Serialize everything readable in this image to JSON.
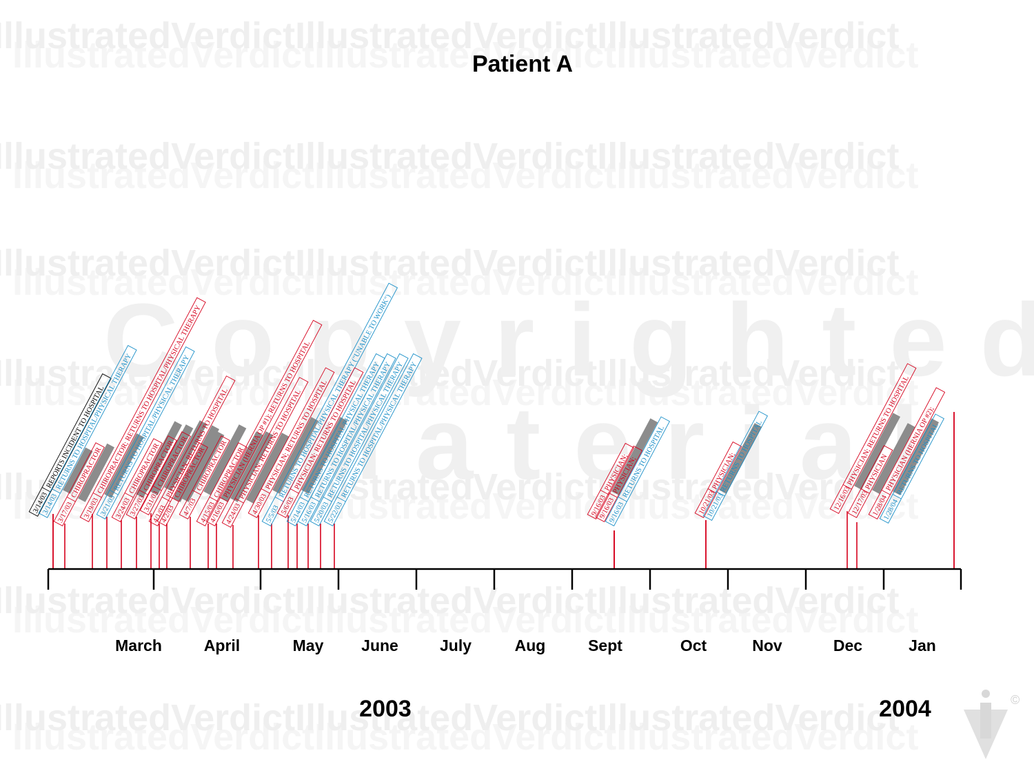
{
  "title": "Patient A",
  "watermark": {
    "row_text": "IllustratedVerdictIllustratedVerdictIllustratedVerdict",
    "big_line1": "Copyrighted",
    "big_line2": "Material",
    "copyright_symbol": "©",
    "logo_icon": "illustrated-verdict-logo-icon"
  },
  "colors": {
    "red": "#d6001c",
    "blue": "#1a8fc8",
    "black": "#000000",
    "bar_gray": "#8c8c8c",
    "axis": "#000000"
  },
  "months": [
    "March",
    "April",
    "May",
    "June",
    "July",
    "Aug",
    "Sept",
    "Oct",
    "Nov",
    "Dec",
    "Jan"
  ],
  "years": [
    "2003",
    "2004"
  ],
  "events": [
    {
      "date": "3/14/03",
      "text": "REPORTS INCIDENT TO HOSPITAL",
      "color": "black"
    },
    {
      "date": "3/14/03",
      "text": "RETURNS TO HOSPITAL/PHYSICAL THERAPY",
      "color": "blue"
    },
    {
      "date": "3/17/03",
      "text": "CHIROPRACTOR",
      "color": "red"
    },
    {
      "date": "3/19/03",
      "text": "CHIROPRACTOR; RETURNS TO HOSPITAL/PHYSICAL THERAPY",
      "color": "red"
    },
    {
      "date": "3/21/03",
      "text": "RETURNS TO HOSPITAL/PHYSICAL THERAPY",
      "color": "blue"
    },
    {
      "date": "3/24/03",
      "text": "CHIROPRACTOR",
      "color": "red"
    },
    {
      "date": "3/27/03",
      "text": "CHIROPRACTOR",
      "color": "red"
    },
    {
      "date": "3/31/03",
      "text": "CHIROPRACTOR",
      "color": "red"
    },
    {
      "date": "4/1/03",
      "text": "PHYSICIAN; RETURNS TO HOSPITAL",
      "color": "red"
    },
    {
      "date": "4/2/03",
      "text": "CHIROPRACTOR",
      "color": "red"
    },
    {
      "date": "4/7/03",
      "text": "CHIROPRACTOR",
      "color": "red"
    },
    {
      "date": "4/15/03",
      "text": "CHIROPRACTOR",
      "color": "red"
    },
    {
      "date": "4/16/03",
      "text": "PHYSICIAN (HERNIA OP #1); RETURNS TO HOSPITAL",
      "color": "red"
    },
    {
      "date": "4/24/03",
      "text": "PHYSICIAN; RETURNS TO HOSPITAL",
      "color": "red"
    },
    {
      "date": "4/30/03",
      "text": "PHYSICIAN; RETURNS TO HOSPITAL",
      "color": "red"
    },
    {
      "date": "5/5/03",
      "text": "RETURNS TO HOSPITAL/PHYSICAL THERAPY (\"UNABLE TO WORK\")",
      "color": "blue"
    },
    {
      "date": "5/6/03",
      "text": "PHYSICIAN; RETURNS TO HOSPITAL",
      "color": "red"
    },
    {
      "date": "5/14/03",
      "text": "RETURNS TO HOSPITAL/PHYSICAL THERAPY",
      "color": "blue"
    },
    {
      "date": "5/16/03",
      "text": "RETURNS TO HOSPITAL/PHYSICAL THERAPY",
      "color": "blue"
    },
    {
      "date": "5/20/03",
      "text": "RETURNS TO HOSPITAL/PHYSICAL THERAPY",
      "color": "blue"
    },
    {
      "date": "5/22/03",
      "text": "RETURNS TO HOSPITAL/PHYSICAL THERAPY",
      "color": "blue"
    },
    {
      "date": "9/16/03",
      "text": "PHYSICIAN;",
      "color": "red"
    },
    {
      "date": "9/16/03",
      "text": "PHYSICIAN;",
      "color": "red"
    },
    {
      "date": "9/16/03",
      "text": "RETURNS TO HOSPITAL",
      "color": "blue"
    },
    {
      "date": "10/21/03",
      "text": "PHYSICIAN;",
      "color": "red"
    },
    {
      "date": "10/21/03",
      "text": "RETURNS TO HOSPITAL",
      "color": "blue"
    },
    {
      "date": "12/16/03",
      "text": "PHYSICIAN; RETURNS TO HOSPITAL",
      "color": "red"
    },
    {
      "date": "12/17/03",
      "text": "PHYSICIAN",
      "color": "red"
    },
    {
      "date": "1/28/04",
      "text": "PHYSICIAN (HERNIA OP #2);",
      "color": "red"
    },
    {
      "date": "1/28/04",
      "text": "RETURNS TO HOSPITAL",
      "color": "blue"
    }
  ]
}
